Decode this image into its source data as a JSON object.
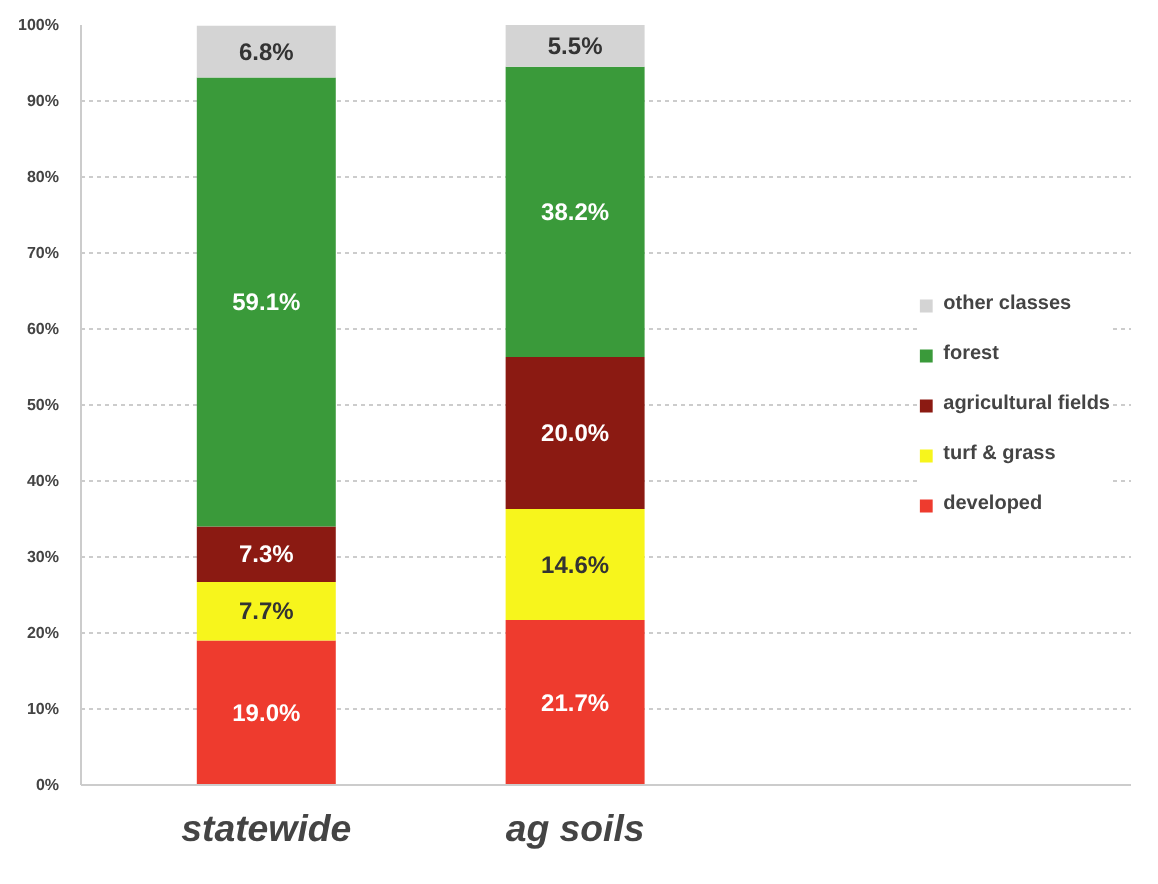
{
  "chart_data": {
    "type": "bar",
    "stacked": true,
    "categories": [
      "statewide",
      "ag soils"
    ],
    "series": [
      {
        "name": "developed",
        "color": "#ee3b2e",
        "values": [
          19.0,
          21.7
        ],
        "value_labels": [
          "19.0%",
          "21.7%"
        ]
      },
      {
        "name": "turf & grass",
        "color": "#f7f51c",
        "values": [
          7.7,
          14.6
        ],
        "value_labels": [
          "7.7%",
          "14.6%"
        ]
      },
      {
        "name": "agricultural fields",
        "color": "#8b1a12",
        "values": [
          7.3,
          20.0
        ],
        "value_labels": [
          "7.3%",
          "20.0%"
        ]
      },
      {
        "name": "forest",
        "color": "#3a9a3a",
        "values": [
          59.1,
          38.2
        ],
        "value_labels": [
          "59.1%",
          "38.2%"
        ]
      },
      {
        "name": "other classes",
        "color": "#d4d4d4",
        "values": [
          6.8,
          5.5
        ],
        "value_labels": [
          "6.8%",
          "5.5%"
        ]
      }
    ],
    "ylim": [
      0,
      100
    ],
    "yticks": [
      {
        "value": 0,
        "label": "0%"
      },
      {
        "value": 10,
        "label": "10%"
      },
      {
        "value": 20,
        "label": "20%"
      },
      {
        "value": 30,
        "label": "30%"
      },
      {
        "value": 40,
        "label": "40%"
      },
      {
        "value": 50,
        "label": "50%"
      },
      {
        "value": 60,
        "label": "60%"
      },
      {
        "value": 70,
        "label": "70%"
      },
      {
        "value": 80,
        "label": "80%"
      },
      {
        "value": 90,
        "label": "90%"
      },
      {
        "value": 100,
        "label": "100%"
      }
    ],
    "grid": "y",
    "legend": "right"
  }
}
